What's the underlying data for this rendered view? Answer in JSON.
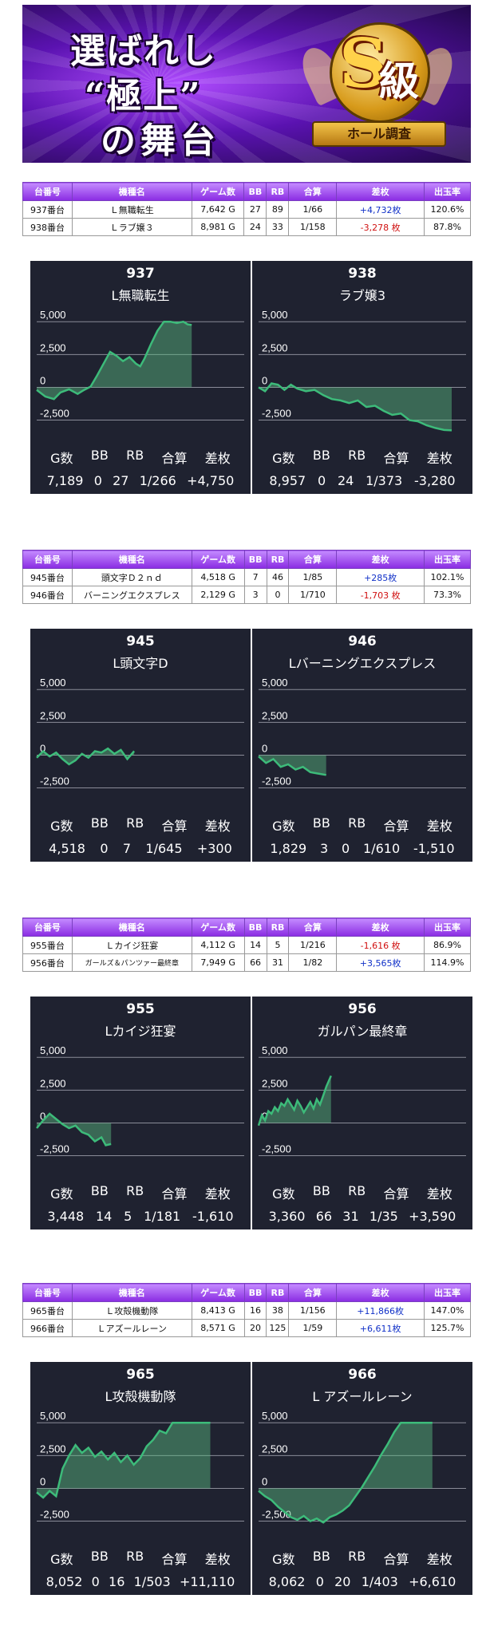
{
  "banner": {
    "line1": "選ばれし",
    "line2": "“極上”",
    "line3": "の舞台",
    "badge_s": "S",
    "badge_kyu": "級",
    "badge_ribbon": "ホール調査"
  },
  "table_headers": [
    "台番号",
    "機種名",
    "ゲーム数",
    "BB",
    "RB",
    "合算",
    "差枚",
    "出玉率"
  ],
  "stat_headers": [
    "G数",
    "BB",
    "RB",
    "合算",
    "差枚"
  ],
  "groups": [
    {
      "rows": [
        {
          "no": "937番台",
          "name": "Ｌ無職転生",
          "games": "7,642 G",
          "bb": "27",
          "rb": "89",
          "combined": "1/66",
          "diff": "+4,732枚",
          "rate": "120.6%",
          "sign": "plus"
        },
        {
          "no": "938番台",
          "name": "Ｌラブ嬢３",
          "games": "8,981 G",
          "bb": "24",
          "rb": "33",
          "combined": "1/158",
          "diff": "-3,278 枚",
          "rate": "87.8%",
          "sign": "minus"
        }
      ],
      "charts": [
        {
          "number": "937",
          "name": "L無職転生",
          "stats": [
            "7,189",
            "0",
            "27",
            "1/266",
            "+4,750"
          ]
        },
        {
          "number": "938",
          "name": "ラブ嬢3",
          "stats": [
            "8,957",
            "0",
            "24",
            "1/373",
            "-3,280"
          ]
        }
      ]
    },
    {
      "rows": [
        {
          "no": "945番台",
          "name": "頭文字Ｄ２ｎｄ",
          "games": "4,518 G",
          "bb": "7",
          "rb": "46",
          "combined": "1/85",
          "diff": "+285枚",
          "rate": "102.1%",
          "sign": "plus"
        },
        {
          "no": "946番台",
          "name": "バーニングエクスプレス",
          "games": "2,129 G",
          "bb": "3",
          "rb": "0",
          "combined": "1/710",
          "diff": "-1,703 枚",
          "rate": "73.3%",
          "sign": "minus"
        }
      ],
      "charts": [
        {
          "number": "945",
          "name": "L頭文字D",
          "stats": [
            "4,518",
            "0",
            "7",
            "1/645",
            "+300"
          ]
        },
        {
          "number": "946",
          "name": "Lバーニングエクスプレス",
          "stats": [
            "1,829",
            "3",
            "0",
            "1/610",
            "-1,510"
          ]
        }
      ]
    },
    {
      "rows": [
        {
          "no": "955番台",
          "name": "Ｌカイジ狂宴",
          "games": "4,112 G",
          "bb": "14",
          "rb": "5",
          "combined": "1/216",
          "diff": "-1,616 枚",
          "rate": "86.9%",
          "sign": "minus"
        },
        {
          "no": "956番台",
          "name": "ガールズ＆パンツァー最終章",
          "games": "7,949 G",
          "bb": "66",
          "rb": "31",
          "combined": "1/82",
          "diff": "+3,565枚",
          "rate": "114.9%",
          "sign": "plus"
        }
      ],
      "charts": [
        {
          "number": "955",
          "name": "Lカイジ狂宴",
          "stats": [
            "3,448",
            "14",
            "5",
            "1/181",
            "-1,610"
          ]
        },
        {
          "number": "956",
          "name": "ガルパン最終章",
          "stats": [
            "3,360",
            "66",
            "31",
            "1/35",
            "+3,590"
          ]
        }
      ]
    },
    {
      "rows": [
        {
          "no": "965番台",
          "name": "Ｌ攻殻機動隊",
          "games": "8,413 G",
          "bb": "16",
          "rb": "38",
          "combined": "1/156",
          "diff": "+11,866枚",
          "rate": "147.0%",
          "sign": "plus"
        },
        {
          "no": "966番台",
          "name": "Ｌアズールレーン",
          "games": "8,571 G",
          "bb": "20",
          "rb": "125",
          "combined": "1/59",
          "diff": "+6,611枚",
          "rate": "125.7%",
          "sign": "plus"
        }
      ],
      "charts": [
        {
          "number": "965",
          "name": "L攻殻機動隊",
          "stats": [
            "8,052",
            "0",
            "16",
            "1/503",
            "+11,110"
          ]
        },
        {
          "number": "966",
          "name": "L アズールレーン",
          "stats": [
            "8,062",
            "0",
            "20",
            "1/403",
            "+6,610"
          ]
        }
      ]
    }
  ],
  "chart_data": [
    {
      "type": "area",
      "title": "937",
      "subtitle": "L無職転生",
      "yticks": [
        "5,000",
        "2,500",
        "0",
        "-2,500"
      ],
      "ylim": [
        -3500,
        5500
      ],
      "xlim": [
        0,
        7189
      ],
      "x": [
        0,
        400,
        800,
        1100,
        1500,
        1900,
        2200,
        2500,
        2800,
        3100,
        3400,
        3700,
        4000,
        4300,
        4600,
        4800,
        5000,
        5300,
        5600,
        5900,
        6200,
        6500,
        6800,
        7000,
        7189
      ],
      "y": [
        -200,
        -700,
        -900,
        -400,
        -150,
        -500,
        -200,
        50,
        900,
        1800,
        2700,
        2400,
        2000,
        2300,
        1800,
        1600,
        2200,
        3300,
        4300,
        5000,
        5000,
        4900,
        5000,
        4800,
        4750
      ]
    },
    {
      "type": "area",
      "title": "938",
      "subtitle": "ラブ嬢3",
      "yticks": [
        "5,000",
        "2,500",
        "0",
        "-2,500"
      ],
      "ylim": [
        -3500,
        5500
      ],
      "xlim": [
        0,
        8957
      ],
      "x": [
        0,
        300,
        600,
        900,
        1200,
        1500,
        1800,
        2200,
        2600,
        3000,
        3400,
        3800,
        4200,
        4600,
        5000,
        5400,
        5800,
        6200,
        6600,
        7000,
        7400,
        7800,
        8200,
        8600,
        8957
      ],
      "y": [
        0,
        -300,
        300,
        200,
        -200,
        200,
        -100,
        -300,
        -200,
        -600,
        -900,
        -1000,
        -1200,
        -1000,
        -1500,
        -1400,
        -1800,
        -2100,
        -2000,
        -2500,
        -2600,
        -2900,
        -3100,
        -3250,
        -3280
      ]
    },
    {
      "type": "area",
      "title": "945",
      "subtitle": "L頭文字D",
      "yticks": [
        "5,000",
        "2,500",
        "0",
        "-2,500"
      ],
      "ylim": [
        -3500,
        5500
      ],
      "xlim": [
        0,
        4518
      ],
      "x": [
        0,
        300,
        600,
        900,
        1200,
        1500,
        1800,
        2100,
        2400,
        2700,
        3000,
        3300,
        3600,
        3900,
        4200,
        4518
      ],
      "y": [
        -200,
        300,
        -100,
        200,
        -300,
        -700,
        -400,
        100,
        -200,
        300,
        200,
        500,
        100,
        400,
        -300,
        300
      ]
    },
    {
      "type": "area",
      "title": "946",
      "subtitle": "Lバーニングエクスプレス",
      "yticks": [
        "5,000",
        "2,500",
        "0",
        "-2,500"
      ],
      "ylim": [
        -3500,
        5500
      ],
      "xlim": [
        0,
        1829
      ],
      "x": [
        0,
        200,
        400,
        600,
        800,
        1000,
        1200,
        1400,
        1600,
        1829
      ],
      "y": [
        -100,
        -600,
        -300,
        -900,
        -700,
        -1100,
        -900,
        -1300,
        -1400,
        -1510
      ]
    },
    {
      "type": "area",
      "title": "955",
      "subtitle": "Lカイジ狂宴",
      "yticks": [
        "5,000",
        "2,500",
        "0",
        "-2,500"
      ],
      "ylim": [
        -3500,
        5500
      ],
      "xlim": [
        0,
        3448
      ],
      "x": [
        0,
        300,
        600,
        900,
        1200,
        1500,
        1800,
        2100,
        2400,
        2700,
        3000,
        3200,
        3448
      ],
      "y": [
        -400,
        200,
        700,
        300,
        -100,
        -400,
        -200,
        -700,
        -900,
        -1400,
        -1100,
        -1700,
        -1610
      ]
    },
    {
      "type": "area",
      "title": "956",
      "subtitle": "ガルパン最終章",
      "yticks": [
        "5,000",
        "2,500",
        "0",
        "-2,500"
      ],
      "ylim": [
        -3500,
        5500
      ],
      "xlim": [
        0,
        3360
      ],
      "x": [
        0,
        150,
        300,
        450,
        600,
        750,
        900,
        1050,
        1200,
        1350,
        1500,
        1650,
        1800,
        1950,
        2100,
        2250,
        2400,
        2550,
        2700,
        2850,
        3000,
        3150,
        3360
      ],
      "y": [
        -200,
        600,
        200,
        900,
        700,
        1200,
        900,
        1500,
        1300,
        1800,
        1400,
        1000,
        1700,
        1300,
        800,
        1200,
        1600,
        1100,
        1800,
        1400,
        2100,
        2800,
        3590
      ]
    },
    {
      "type": "area",
      "title": "965",
      "subtitle": "L攻殻機動隊",
      "yticks": [
        "5,000",
        "2,500",
        "0",
        "-2,500"
      ],
      "ylim": [
        -3500,
        5500
      ],
      "xlim": [
        0,
        8052
      ],
      "x": [
        0,
        300,
        600,
        900,
        1200,
        1500,
        1800,
        2100,
        2400,
        2700,
        3000,
        3300,
        3600,
        3900,
        4200,
        4500,
        4800,
        5100,
        5400,
        5700,
        6000,
        6300,
        6600,
        6900,
        7200,
        7600,
        8052
      ],
      "y": [
        -300,
        -700,
        -200,
        -600,
        1500,
        2500,
        3300,
        2700,
        3100,
        2400,
        2800,
        2200,
        2700,
        2000,
        2500,
        1800,
        2300,
        3200,
        3700,
        4400,
        4200,
        5000,
        5000,
        5000,
        5000,
        5000,
        5000
      ]
    },
    {
      "type": "area",
      "title": "966",
      "subtitle": "L アズールレーン",
      "yticks": [
        "5,000",
        "2,500",
        "0",
        "-2,500"
      ],
      "ylim": [
        -3500,
        5500
      ],
      "xlim": [
        0,
        8062
      ],
      "x": [
        0,
        300,
        600,
        900,
        1200,
        1500,
        1800,
        2100,
        2400,
        2700,
        3000,
        3300,
        3600,
        3900,
        4200,
        4500,
        4800,
        5100,
        5400,
        5700,
        6000,
        6300,
        6600,
        7000,
        7400,
        7800,
        8062
      ],
      "y": [
        -200,
        -600,
        -900,
        -1400,
        -1800,
        -2200,
        -2400,
        -2100,
        -2500,
        -2300,
        -2600,
        -2200,
        -2000,
        -1700,
        -1300,
        -600,
        100,
        900,
        1700,
        2600,
        3400,
        4300,
        5000,
        5000,
        5000,
        5000,
        5000
      ]
    }
  ],
  "colors": {
    "card_bg": "#1f2230",
    "line": "#3dbb7a",
    "fill": "rgba(90,190,130,0.45)",
    "plus": "#1030c8",
    "minus": "#d01010",
    "header": "#8a2be2"
  }
}
